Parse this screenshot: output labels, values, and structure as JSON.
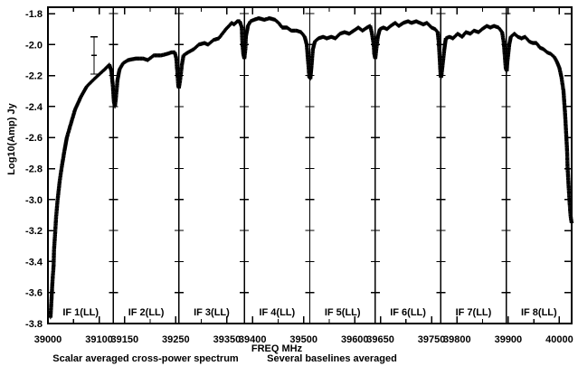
{
  "page": {
    "background": "#ffffff",
    "foreground": "#000000"
  },
  "chart_data": {
    "type": "scatter",
    "marker": "plus",
    "title": "",
    "xlabel": "FREQ MHz",
    "ylabel": "Log10(Amp) Jy",
    "caption_left": "Scalar averaged cross-power spectrum",
    "caption_right": "Several baselines averaged",
    "legend": "none",
    "grid": "off",
    "xlim": [
      39000,
      40024
    ],
    "ylim": [
      -3.8,
      -1.759
    ],
    "y_ticks": [
      -1.8,
      -2.0,
      -2.2,
      -2.4,
      -2.6,
      -2.8,
      -3.0,
      -3.2,
      -3.4,
      -3.6,
      -3.8
    ],
    "x_major_ticks": [
      39000,
      39100,
      39150,
      39250,
      39350,
      39400,
      39500,
      39600,
      39650,
      39750,
      39800,
      39900,
      40000
    ],
    "x_minor_step": 50,
    "panel_boundaries": [
      39128,
      39256,
      39384,
      39512,
      39640,
      39768,
      39896
    ],
    "panels": [
      {
        "label": "IF 1(LL)",
        "start": 39000,
        "end": 39128
      },
      {
        "label": "IF 2(LL)",
        "start": 39128,
        "end": 39256
      },
      {
        "label": "IF 3(LL)",
        "start": 39256,
        "end": 39384
      },
      {
        "label": "IF 4(LL)",
        "start": 39384,
        "end": 39512
      },
      {
        "label": "IF 5(LL)",
        "start": 39512,
        "end": 39640
      },
      {
        "label": "IF 6(LL)",
        "start": 39640,
        "end": 39768
      },
      {
        "label": "IF 7(LL)",
        "start": 39768,
        "end": 39896
      },
      {
        "label": "IF 8(LL)",
        "start": 39896,
        "end": 40024
      }
    ],
    "errorbar": {
      "freq": 39090,
      "high": -1.95,
      "low": -2.19,
      "center": -2.07
    },
    "series": [
      {
        "name": "scalar averaged cross-power spectrum",
        "points": [
          [
            39005,
            -3.76
          ],
          [
            39007,
            -3.64
          ],
          [
            39009,
            -3.52
          ],
          [
            39011,
            -3.43
          ],
          [
            39012,
            -3.32
          ],
          [
            39014,
            -3.22
          ],
          [
            39016,
            -3.11
          ],
          [
            39019,
            -3.0
          ],
          [
            39023,
            -2.88
          ],
          [
            39027,
            -2.79
          ],
          [
            39032,
            -2.69
          ],
          [
            39037,
            -2.6
          ],
          [
            39044,
            -2.52
          ],
          [
            39053,
            -2.42
          ],
          [
            39064,
            -2.34
          ],
          [
            39076,
            -2.27
          ],
          [
            39088,
            -2.23
          ],
          [
            39101,
            -2.19
          ],
          [
            39111,
            -2.16
          ],
          [
            39120,
            -2.13
          ],
          [
            39124,
            -2.17
          ],
          [
            39127,
            -2.27
          ],
          [
            39129,
            -2.37
          ],
          [
            39131,
            -2.4
          ],
          [
            39133,
            -2.34
          ],
          [
            39136,
            -2.23
          ],
          [
            39140,
            -2.16
          ],
          [
            39147,
            -2.12
          ],
          [
            39157,
            -2.1
          ],
          [
            39172,
            -2.09
          ],
          [
            39186,
            -2.09
          ],
          [
            39195,
            -2.1
          ],
          [
            39207,
            -2.07
          ],
          [
            39221,
            -2.07
          ],
          [
            39233,
            -2.06
          ],
          [
            39242,
            -2.05
          ],
          [
            39248,
            -2.05
          ],
          [
            39251,
            -2.09
          ],
          [
            39253,
            -2.18
          ],
          [
            39255,
            -2.27
          ],
          [
            39256,
            -2.28
          ],
          [
            39258,
            -2.24
          ],
          [
            39262,
            -2.13
          ],
          [
            39265,
            -2.07
          ],
          [
            39274,
            -2.05
          ],
          [
            39285,
            -2.03
          ],
          [
            39295,
            -2.0
          ],
          [
            39306,
            -1.99
          ],
          [
            39313,
            -2.0
          ],
          [
            39324,
            -1.97
          ],
          [
            39334,
            -1.96
          ],
          [
            39341,
            -1.93
          ],
          [
            39348,
            -1.9
          ],
          [
            39354,
            -1.88
          ],
          [
            39359,
            -1.86
          ],
          [
            39364,
            -1.87
          ],
          [
            39370,
            -1.85
          ],
          [
            39375,
            -1.85
          ],
          [
            39379,
            -1.89
          ],
          [
            39380,
            -1.98
          ],
          [
            39382,
            -2.06
          ],
          [
            39384,
            -2.09
          ],
          [
            39386,
            -2.03
          ],
          [
            39387,
            -1.95
          ],
          [
            39391,
            -1.88
          ],
          [
            39396,
            -1.85
          ],
          [
            39403,
            -1.84
          ],
          [
            39412,
            -1.83
          ],
          [
            39423,
            -1.84
          ],
          [
            39433,
            -1.83
          ],
          [
            39444,
            -1.84
          ],
          [
            39451,
            -1.86
          ],
          [
            39458,
            -1.89
          ],
          [
            39467,
            -1.89
          ],
          [
            39476,
            -1.91
          ],
          [
            39486,
            -1.91
          ],
          [
            39495,
            -1.92
          ],
          [
            39502,
            -1.95
          ],
          [
            39506,
            -2.0
          ],
          [
            39509,
            -2.12
          ],
          [
            39511,
            -2.21
          ],
          [
            39513,
            -2.22
          ],
          [
            39515,
            -2.15
          ],
          [
            39518,
            -2.03
          ],
          [
            39522,
            -1.98
          ],
          [
            39529,
            -1.96
          ],
          [
            39538,
            -1.95
          ],
          [
            39545,
            -1.96
          ],
          [
            39554,
            -1.95
          ],
          [
            39562,
            -1.96
          ],
          [
            39571,
            -1.93
          ],
          [
            39580,
            -1.92
          ],
          [
            39589,
            -1.93
          ],
          [
            39598,
            -1.91
          ],
          [
            39607,
            -1.89
          ],
          [
            39615,
            -1.91
          ],
          [
            39624,
            -1.89
          ],
          [
            39630,
            -1.88
          ],
          [
            39633,
            -1.92
          ],
          [
            39637,
            -2.0
          ],
          [
            39638,
            -2.06
          ],
          [
            39640,
            -2.09
          ],
          [
            39642,
            -2.03
          ],
          [
            39645,
            -1.95
          ],
          [
            39649,
            -1.9
          ],
          [
            39656,
            -1.89
          ],
          [
            39663,
            -1.9
          ],
          [
            39670,
            -1.88
          ],
          [
            39679,
            -1.86
          ],
          [
            39686,
            -1.88
          ],
          [
            39695,
            -1.86
          ],
          [
            39704,
            -1.85
          ],
          [
            39711,
            -1.86
          ],
          [
            39720,
            -1.85
          ],
          [
            39727,
            -1.86
          ],
          [
            39734,
            -1.87
          ],
          [
            39741,
            -1.86
          ],
          [
            39750,
            -1.89
          ],
          [
            39757,
            -1.9
          ],
          [
            39762,
            -1.92
          ],
          [
            39764,
            -1.98
          ],
          [
            39766,
            -2.09
          ],
          [
            39768,
            -2.21
          ],
          [
            39769,
            -2.21
          ],
          [
            39771,
            -2.15
          ],
          [
            39775,
            -2.03
          ],
          [
            39778,
            -1.96
          ],
          [
            39785,
            -1.95
          ],
          [
            39792,
            -1.96
          ],
          [
            39801,
            -1.93
          ],
          [
            39810,
            -1.95
          ],
          [
            39817,
            -1.92
          ],
          [
            39826,
            -1.93
          ],
          [
            39833,
            -1.91
          ],
          [
            39842,
            -1.92
          ],
          [
            39849,
            -1.9
          ],
          [
            39858,
            -1.88
          ],
          [
            39865,
            -1.89
          ],
          [
            39872,
            -1.88
          ],
          [
            39881,
            -1.89
          ],
          [
            39888,
            -1.92
          ],
          [
            39891,
            -1.98
          ],
          [
            39893,
            -2.06
          ],
          [
            39895,
            -2.15
          ],
          [
            39897,
            -2.17
          ],
          [
            39898,
            -2.12
          ],
          [
            39902,
            -2.0
          ],
          [
            39905,
            -1.95
          ],
          [
            39912,
            -1.93
          ],
          [
            39919,
            -1.95
          ],
          [
            39926,
            -1.96
          ],
          [
            39933,
            -1.95
          ],
          [
            39941,
            -1.98
          ],
          [
            39948,
            -1.99
          ],
          [
            39955,
            -1.99
          ],
          [
            39962,
            -2.02
          ],
          [
            39969,
            -2.03
          ],
          [
            39976,
            -2.05
          ],
          [
            39983,
            -2.06
          ],
          [
            39990,
            -2.08
          ],
          [
            39995,
            -2.11
          ],
          [
            40000,
            -2.15
          ],
          [
            40004,
            -2.21
          ],
          [
            40008,
            -2.3
          ],
          [
            40011,
            -2.44
          ],
          [
            40013,
            -2.56
          ],
          [
            40015,
            -2.68
          ],
          [
            40016,
            -2.79
          ],
          [
            40018,
            -2.91
          ],
          [
            40020,
            -3.02
          ],
          [
            40022,
            -3.11
          ],
          [
            40024,
            -3.15
          ]
        ]
      }
    ]
  }
}
